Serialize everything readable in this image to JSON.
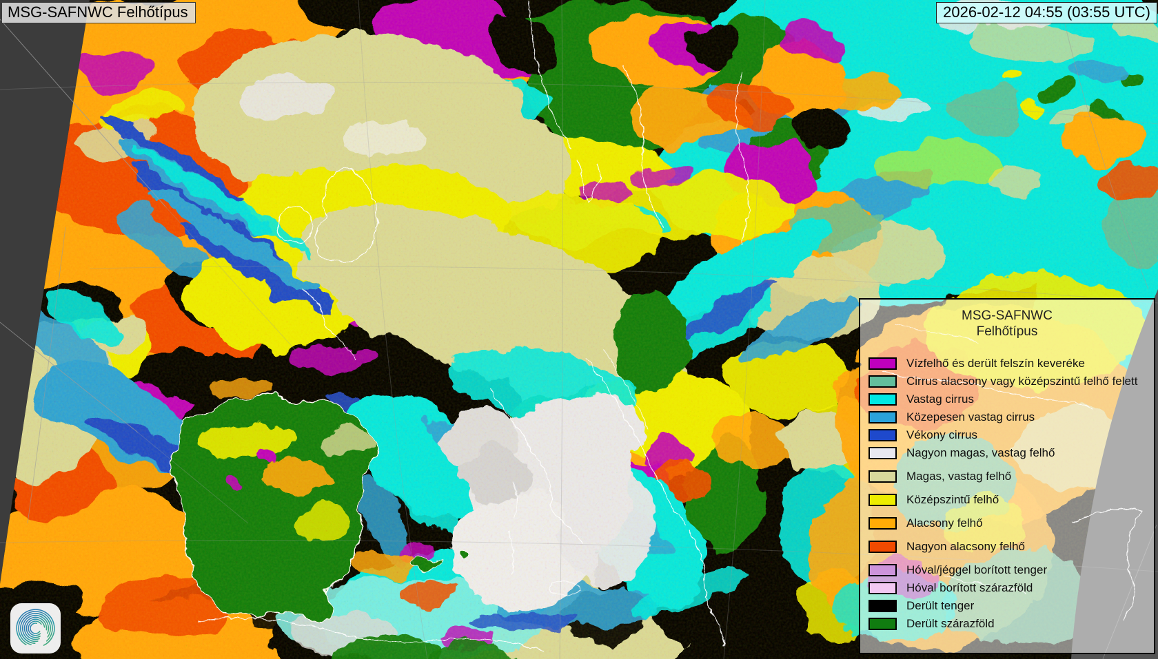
{
  "header": {
    "title": "MSG-SAFNWC Felhőtípus",
    "timestamp": "2026-02-12 04:55 (03:55 UTC)"
  },
  "legend": {
    "title_line1": "MSG-SAFNWC",
    "title_line2": "Felhőtípus",
    "items": [
      {
        "label": "Vízfelhő és derült felszín keveréke",
        "color": "#BE00BE"
      },
      {
        "label": "Cirrus alacsony vagy középszintű felhő felett",
        "color": "#62BE9C"
      },
      {
        "label": "Vastag cirrus",
        "color": "#00E8E4"
      },
      {
        "label": "Közepesen vastag cirrus",
        "color": "#2BA2DA"
      },
      {
        "label": "Vékony cirrus",
        "color": "#1E49CC"
      },
      {
        "label": "Nagyon magas, vastag felhő",
        "color": "#E8E8F0"
      },
      {
        "label": "Magas, vastag felhő",
        "color": "#D8D89C"
      },
      {
        "label": "Középszintű felhő",
        "color": "#EDED00"
      },
      {
        "label": "Alacsony felhő",
        "color": "#FFAC07"
      },
      {
        "label": "Nagyon alacsony felhő",
        "color": "#F04A00"
      },
      {
        "label": "Hóval/jéggel borított tenger",
        "color": "#CD94DB"
      },
      {
        "label": "Hóval borított szárazföld",
        "color": "#F2C8F2"
      },
      {
        "label": "Derült tenger",
        "color": "#000000"
      },
      {
        "label": "Derült szárazföld",
        "color": "#107C10"
      }
    ]
  },
  "logo": {
    "icon": "spiral-swirl-logo"
  }
}
